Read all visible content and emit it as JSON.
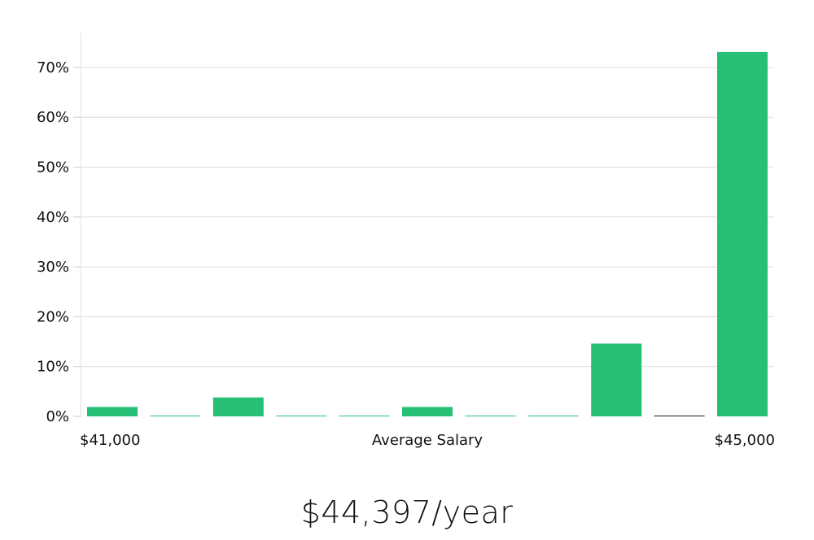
{
  "chart_data": {
    "type": "bar",
    "xlabel": "Average Salary",
    "x_start_label": "$41,000",
    "x_end_label": "$45,000",
    "y_ticks": [
      "0%",
      "10%",
      "20%",
      "30%",
      "40%",
      "50%",
      "60%",
      "70%"
    ],
    "ylim": [
      0,
      77
    ],
    "values": [
      1.9,
      0.1,
      3.8,
      0.1,
      0.1,
      1.9,
      0.1,
      0.1,
      14.6,
      0.1,
      73.1
    ],
    "bar_color": "#27be76",
    "dark_bar_index": 9,
    "dark_bar_color": "#1a1a1a",
    "grid": true
  },
  "summary": {
    "average_salary": "$44,397/year"
  }
}
